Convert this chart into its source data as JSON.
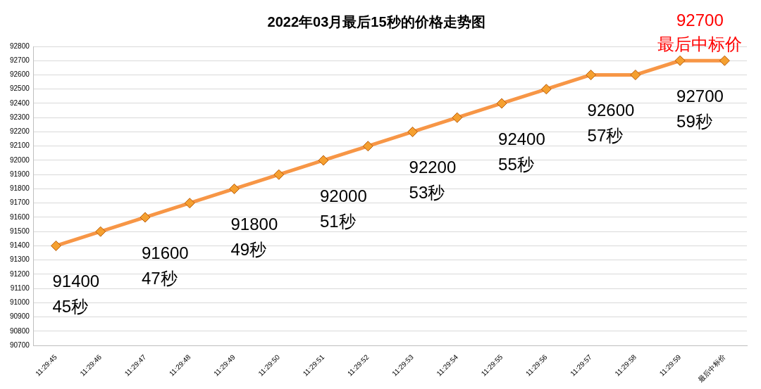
{
  "chart_data": {
    "type": "line",
    "title": "2022年03月最后15秒的价格走势图",
    "categories": [
      "11:29:45",
      "11:29:46",
      "11:29:47",
      "11:29:48",
      "11:29:49",
      "11:29:50",
      "11:29:51",
      "11:29:52",
      "11:29:53",
      "11:29:54",
      "11:29:55",
      "11:29:56",
      "11:29:57",
      "11:29:58",
      "11:29:59",
      "最后中标价"
    ],
    "series": [
      {
        "color": "#f79646",
        "values": [
          91400,
          91500,
          91600,
          91700,
          91800,
          91900,
          92000,
          92100,
          92200,
          92300,
          92400,
          92500,
          92600,
          92600,
          92700,
          92700
        ]
      }
    ],
    "ylim": [
      90700,
      92800
    ],
    "yticks": [
      90700,
      90800,
      90900,
      91000,
      91100,
      91200,
      91300,
      91400,
      91500,
      91600,
      91700,
      91800,
      91900,
      92000,
      92100,
      92200,
      92300,
      92400,
      92500,
      92600,
      92700,
      92800
    ],
    "grid": "y",
    "legend": false,
    "marker": "diamond",
    "line_style": "solid",
    "annotations": [
      {
        "text": "91400\n45秒",
        "x": "11:29:45",
        "y": 91400
      },
      {
        "text": "91600\n47秒",
        "x": "11:29:47",
        "y": 91600
      },
      {
        "text": "91800\n49秒",
        "x": "11:29:49",
        "y": 91800
      },
      {
        "text": "92000\n51秒",
        "x": "11:29:51",
        "y": 92000
      },
      {
        "text": "92200\n53秒",
        "x": "11:29:53",
        "y": 92200
      },
      {
        "text": "92400\n55秒",
        "x": "11:29:55",
        "y": 92400
      },
      {
        "text": "92600\n57秒",
        "x": "11:29:57",
        "y": 92600
      },
      {
        "text": "92700\n59秒",
        "x": "11:29:59",
        "y": 92700
      },
      {
        "text": "92700\n最后中标价",
        "x": "最后中标价",
        "y": 92700
      }
    ]
  }
}
